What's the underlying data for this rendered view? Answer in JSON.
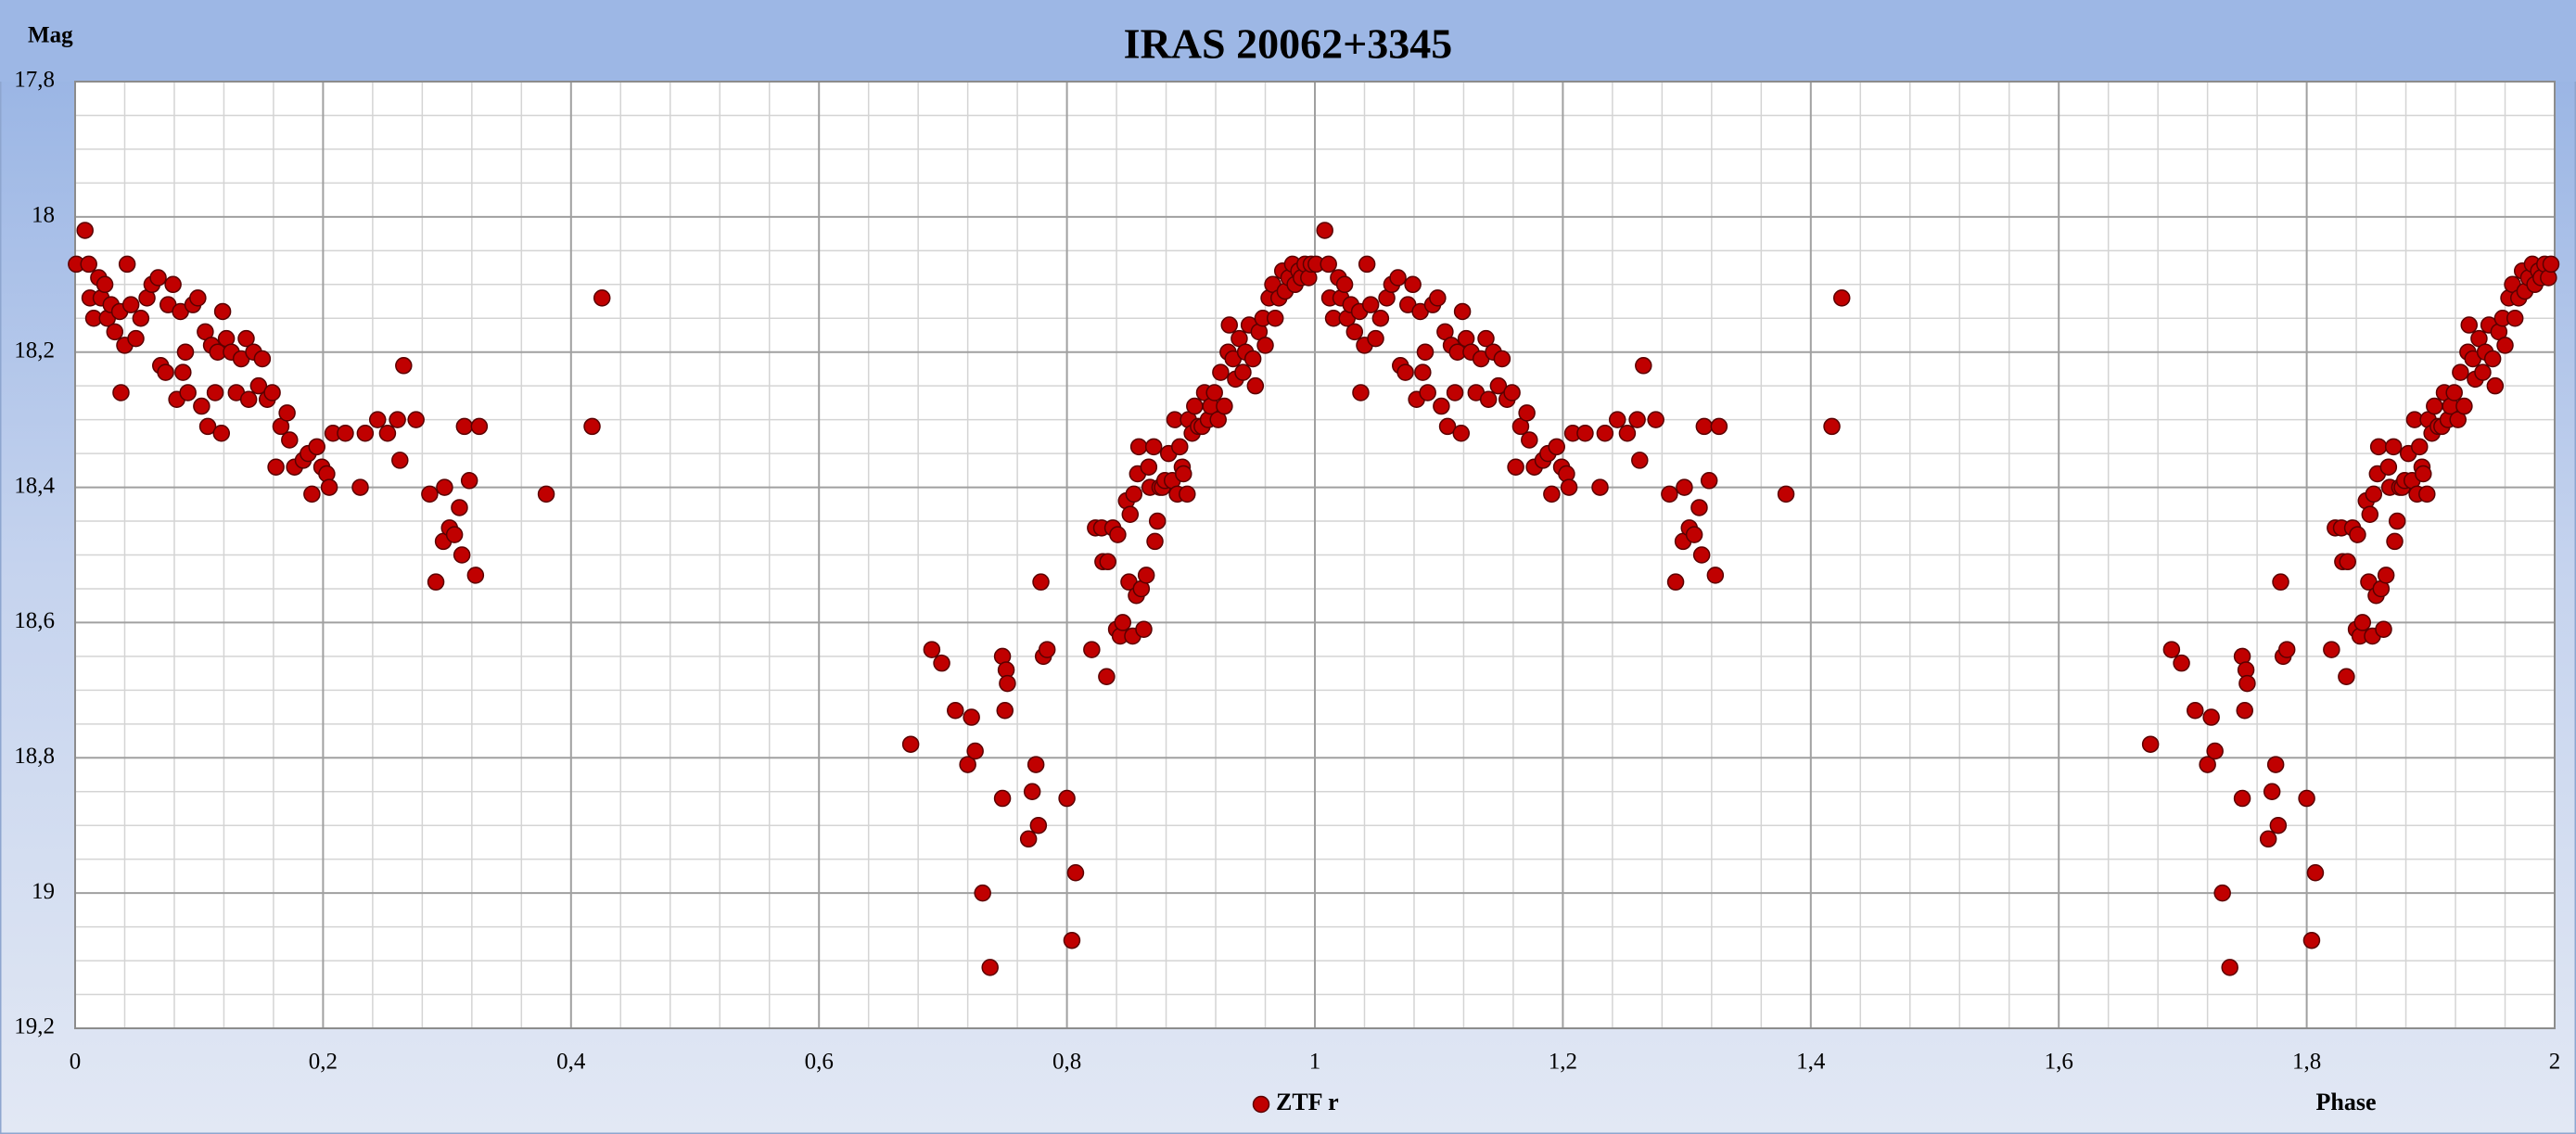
{
  "chart_data": {
    "type": "scatter",
    "title": "IRAS 20062+3345",
    "y_label": "Mag",
    "x_label": "Phase",
    "xlim": [
      0,
      2
    ],
    "ylim": [
      19.2,
      17.8
    ],
    "xticks": [
      0,
      {
        "value": 0.2,
        "label": "0,2"
      },
      {
        "value": 0.4,
        "label": "0,4"
      },
      {
        "value": 0.6,
        "label": "0,6"
      },
      {
        "value": 0.8,
        "label": "0,8"
      },
      1,
      {
        "value": 1.2,
        "label": "1,2"
      },
      {
        "value": 1.4,
        "label": "1,4"
      },
      {
        "value": 1.6,
        "label": "1,6"
      },
      {
        "value": 1.8,
        "label": "1,8"
      },
      2
    ],
    "yticks": [
      {
        "value": 17.8,
        "label": "17,8"
      },
      18,
      {
        "value": 18.2,
        "label": "18,2"
      },
      {
        "value": 18.4,
        "label": "18,4"
      },
      {
        "value": 18.6,
        "label": "18,6"
      },
      {
        "value": 18.8,
        "label": "18,8"
      },
      19,
      {
        "value": 19.2,
        "label": "19,2"
      }
    ],
    "grid": true,
    "legend": "bottom",
    "series": [
      {
        "name": "ZTF r",
        "color": "#c00000",
        "x": [
          0.001,
          0.008,
          0.011,
          0.012,
          0.015,
          0.019,
          0.021,
          0.024,
          0.026,
          0.029,
          0.032,
          0.036,
          0.037,
          0.04,
          0.042,
          0.045,
          0.049,
          0.053,
          0.058,
          0.062,
          0.067,
          0.069,
          0.073,
          0.075,
          0.079,
          0.082,
          0.085,
          0.087,
          0.089,
          0.091,
          0.095,
          0.099,
          0.102,
          0.105,
          0.107,
          0.11,
          0.113,
          0.115,
          0.118,
          0.119,
          0.122,
          0.126,
          0.13,
          0.134,
          0.138,
          0.14,
          0.144,
          0.148,
          0.151,
          0.155,
          0.159,
          0.162,
          0.166,
          0.171,
          0.173,
          0.177,
          0.184,
          0.188,
          0.191,
          0.195,
          0.199,
          0.203,
          0.205,
          0.208,
          0.218,
          0.23,
          0.234,
          0.244,
          0.252,
          0.26,
          0.262,
          0.265,
          0.275,
          0.286,
          0.291,
          0.298,
          0.297,
          0.302,
          0.306,
          0.31,
          0.312,
          0.314,
          0.318,
          0.323,
          0.326,
          0.38,
          0.417,
          0.425,
          0.674,
          0.691,
          0.699,
          0.71,
          0.72,
          0.723,
          0.726,
          0.732,
          0.738,
          0.748,
          0.748,
          0.75,
          0.751,
          0.752,
          0.769,
          0.772,
          0.775,
          0.777,
          0.779,
          0.781,
          0.784,
          0.8,
          0.804,
          0.807,
          0.82,
          0.823,
          0.828,
          0.829,
          0.832,
          0.833,
          0.837,
          0.84,
          0.841,
          0.843,
          0.845,
          0.848,
          0.85,
          0.851,
          0.853,
          0.854,
          0.856,
          0.857,
          0.858,
          0.86,
          0.862,
          0.864,
          0.866,
          0.867,
          0.87,
          0.871,
          0.873,
          0.875,
          0.877,
          0.879,
          0.882,
          0.885,
          0.887,
          0.889,
          0.891,
          0.893,
          0.894,
          0.897,
          0.898,
          0.901,
          0.903,
          0.906,
          0.909,
          0.911,
          0.914,
          0.916,
          0.919,
          0.922,
          0.924,
          0.927,
          0.93,
          0.931,
          0.934,
          0.936,
          0.939,
          0.942,
          0.944,
          0.947,
          0.95,
          0.952,
          0.955,
          0.958,
          0.96,
          0.963,
          0.966,
          0.968,
          0.971,
          0.974,
          0.976,
          0.979,
          0.982,
          0.984,
          0.987,
          0.989,
          0.992,
          0.995,
          0.997,
          1.001,
          1.008,
          1.011,
          1.012,
          1.015,
          1.019,
          1.021,
          1.024,
          1.026,
          1.029,
          1.032,
          1.036,
          1.037,
          1.04,
          1.042,
          1.045,
          1.049,
          1.053,
          1.058,
          1.062,
          1.067,
          1.069,
          1.073,
          1.075,
          1.079,
          1.082,
          1.085,
          1.087,
          1.089,
          1.091,
          1.095,
          1.099,
          1.102,
          1.105,
          1.107,
          1.11,
          1.113,
          1.115,
          1.118,
          1.119,
          1.122,
          1.126,
          1.13,
          1.134,
          1.138,
          1.14,
          1.144,
          1.148,
          1.151,
          1.155,
          1.159,
          1.162,
          1.166,
          1.171,
          1.173,
          1.177,
          1.184,
          1.188,
          1.191,
          1.195,
          1.199,
          1.203,
          1.205,
          1.208,
          1.218,
          1.23,
          1.234,
          1.244,
          1.252,
          1.26,
          1.262,
          1.265,
          1.275,
          1.286,
          1.291,
          1.298,
          1.297,
          1.302,
          1.306,
          1.31,
          1.312,
          1.314,
          1.318,
          1.323,
          1.326,
          1.38,
          1.417,
          1.425,
          1.674,
          1.691,
          1.699,
          1.71,
          1.72,
          1.723,
          1.726,
          1.732,
          1.738,
          1.748,
          1.748,
          1.75,
          1.751,
          1.752,
          1.769,
          1.772,
          1.775,
          1.777,
          1.779,
          1.781,
          1.784,
          1.8,
          1.804,
          1.807,
          1.82,
          1.823,
          1.828,
          1.829,
          1.832,
          1.833,
          1.837,
          1.84,
          1.841,
          1.843,
          1.845,
          1.848,
          1.85,
          1.851,
          1.853,
          1.854,
          1.856,
          1.857,
          1.858,
          1.86,
          1.862,
          1.864,
          1.866,
          1.867,
          1.87,
          1.871,
          1.873,
          1.875,
          1.877,
          1.879,
          1.882,
          1.885,
          1.887,
          1.889,
          1.891,
          1.893,
          1.894,
          1.897,
          1.898,
          1.901,
          1.903,
          1.906,
          1.909,
          1.911,
          1.914,
          1.916,
          1.919,
          1.922,
          1.924,
          1.927,
          1.93,
          1.931,
          1.934,
          1.936,
          1.939,
          1.942,
          1.944,
          1.947,
          1.95,
          1.952,
          1.955,
          1.958,
          1.96,
          1.963,
          1.966,
          1.968,
          1.971,
          1.974,
          1.976,
          1.979,
          1.982,
          1.984,
          1.987,
          1.989,
          1.992,
          1.995,
          1.997
        ],
        "values": [
          18.07,
          18.02,
          18.07,
          18.12,
          18.15,
          18.09,
          18.12,
          18.1,
          18.15,
          18.13,
          18.17,
          18.14,
          18.26,
          18.19,
          18.07,
          18.13,
          18.18,
          18.15,
          18.12,
          18.1,
          18.09,
          18.22,
          18.23,
          18.13,
          18.1,
          18.27,
          18.14,
          18.23,
          18.2,
          18.26,
          18.13,
          18.12,
          18.28,
          18.17,
          18.31,
          18.19,
          18.26,
          18.2,
          18.32,
          18.14,
          18.18,
          18.2,
          18.26,
          18.21,
          18.18,
          18.27,
          18.2,
          18.25,
          18.21,
          18.27,
          18.26,
          18.37,
          18.31,
          18.29,
          18.33,
          18.37,
          18.36,
          18.35,
          18.41,
          18.34,
          18.37,
          18.38,
          18.4,
          18.32,
          18.32,
          18.4,
          18.32,
          18.3,
          18.32,
          18.3,
          18.36,
          18.22,
          18.3,
          18.41,
          18.54,
          18.4,
          18.48,
          18.46,
          18.47,
          18.43,
          18.5,
          18.31,
          18.39,
          18.53,
          18.31,
          18.41,
          18.31,
          18.12,
          18.78,
          18.64,
          18.66,
          18.73,
          18.81,
          18.74,
          18.79,
          19.0,
          19.11,
          18.86,
          18.65,
          18.73,
          18.67,
          18.69,
          18.92,
          18.85,
          18.81,
          18.9,
          18.54,
          18.65,
          18.64,
          18.86,
          19.07,
          18.97,
          18.64,
          18.46,
          18.46,
          18.51,
          18.68,
          18.51,
          18.46,
          18.61,
          18.47,
          18.62,
          18.6,
          18.42,
          18.54,
          18.44,
          18.62,
          18.41,
          18.56,
          18.38,
          18.34,
          18.55,
          18.61,
          18.53,
          18.37,
          18.4,
          18.34,
          18.48,
          18.45,
          18.4,
          18.4,
          18.39,
          18.35,
          18.39,
          18.3,
          18.41,
          18.34,
          18.37,
          18.38,
          18.41,
          18.3,
          18.32,
          18.28,
          18.31,
          18.31,
          18.26,
          18.3,
          18.28,
          18.26,
          18.3,
          18.23,
          18.28,
          18.2,
          18.16,
          18.21,
          18.24,
          18.18,
          18.23,
          18.2,
          18.16,
          18.21,
          18.25,
          18.17,
          18.15,
          18.19,
          18.12,
          18.1,
          18.15,
          18.12,
          18.08,
          18.11,
          18.09,
          18.07,
          18.1,
          18.08,
          18.09,
          18.07,
          18.09,
          18.07,
          18.07,
          18.02,
          18.07,
          18.12,
          18.15,
          18.09,
          18.12,
          18.1,
          18.15,
          18.13,
          18.17,
          18.14,
          18.26,
          18.19,
          18.07,
          18.13,
          18.18,
          18.15,
          18.12,
          18.1,
          18.09,
          18.22,
          18.23,
          18.13,
          18.1,
          18.27,
          18.14,
          18.23,
          18.2,
          18.26,
          18.13,
          18.12,
          18.28,
          18.17,
          18.31,
          18.19,
          18.26,
          18.2,
          18.32,
          18.14,
          18.18,
          18.2,
          18.26,
          18.21,
          18.18,
          18.27,
          18.2,
          18.25,
          18.21,
          18.27,
          18.26,
          18.37,
          18.31,
          18.29,
          18.33,
          18.37,
          18.36,
          18.35,
          18.41,
          18.34,
          18.37,
          18.38,
          18.4,
          18.32,
          18.32,
          18.4,
          18.32,
          18.3,
          18.32,
          18.3,
          18.36,
          18.22,
          18.3,
          18.41,
          18.54,
          18.4,
          18.48,
          18.46,
          18.47,
          18.43,
          18.5,
          18.31,
          18.39,
          18.53,
          18.31,
          18.41,
          18.31,
          18.12,
          18.78,
          18.64,
          18.66,
          18.73,
          18.81,
          18.74,
          18.79,
          19.0,
          19.11,
          18.86,
          18.65,
          18.73,
          18.67,
          18.69,
          18.92,
          18.85,
          18.81,
          18.9,
          18.54,
          18.65,
          18.64,
          18.86,
          19.07,
          18.97,
          18.64,
          18.46,
          18.46,
          18.51,
          18.68,
          18.51,
          18.46,
          18.61,
          18.47,
          18.62,
          18.6,
          18.42,
          18.54,
          18.44,
          18.62,
          18.41,
          18.56,
          18.38,
          18.34,
          18.55,
          18.61,
          18.53,
          18.37,
          18.4,
          18.34,
          18.48,
          18.45,
          18.4,
          18.4,
          18.39,
          18.35,
          18.39,
          18.3,
          18.41,
          18.34,
          18.37,
          18.38,
          18.41,
          18.3,
          18.32,
          18.28,
          18.31,
          18.31,
          18.26,
          18.3,
          18.28,
          18.26,
          18.3,
          18.23,
          18.28,
          18.2,
          18.16,
          18.21,
          18.24,
          18.18,
          18.23,
          18.2,
          18.16,
          18.21,
          18.25,
          18.17,
          18.15,
          18.19,
          18.12,
          18.1,
          18.15,
          18.12,
          18.08,
          18.11,
          18.09,
          18.07,
          18.1,
          18.08,
          18.09,
          18.07,
          18.09,
          18.07
        ]
      }
    ]
  }
}
